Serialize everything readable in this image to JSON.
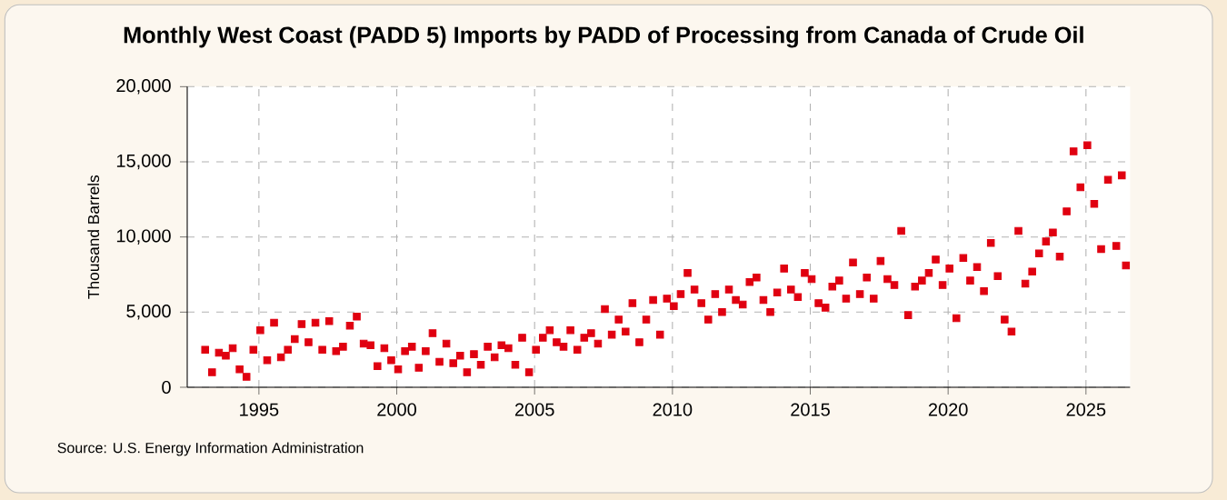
{
  "chart_data": {
    "type": "scatter",
    "title": "Monthly West Coast (PADD 5) Imports by PADD of Processing from Canada of Crude Oil",
    "ylabel": "Thousand Barrels",
    "annotations": [
      "Source: U.S. Energy Information Administration"
    ],
    "x": [
      1993.05,
      1993.3,
      1993.55,
      1993.8,
      1994.05,
      1994.3,
      1994.55,
      1994.8,
      1995.05,
      1995.3,
      1995.55,
      1995.8,
      1996.05,
      1996.3,
      1996.55,
      1996.8,
      1997.05,
      1997.3,
      1997.55,
      1997.8,
      1998.05,
      1998.3,
      1998.55,
      1998.8,
      1999.05,
      1999.3,
      1999.55,
      1999.8,
      2000.05,
      2000.3,
      2000.55,
      2000.8,
      2001.05,
      2001.3,
      2001.55,
      2001.8,
      2002.05,
      2002.3,
      2002.55,
      2002.8,
      2003.05,
      2003.3,
      2003.55,
      2003.8,
      2004.05,
      2004.3,
      2004.55,
      2004.8,
      2005.05,
      2005.3,
      2005.55,
      2005.8,
      2006.05,
      2006.3,
      2006.55,
      2006.8,
      2007.05,
      2007.3,
      2007.55,
      2007.8,
      2008.05,
      2008.3,
      2008.55,
      2008.8,
      2009.05,
      2009.3,
      2009.55,
      2009.8,
      2010.05,
      2010.3,
      2010.55,
      2010.8,
      2011.05,
      2011.3,
      2011.55,
      2011.8,
      2012.05,
      2012.3,
      2012.55,
      2012.8,
      2013.05,
      2013.3,
      2013.55,
      2013.8,
      2014.05,
      2014.3,
      2014.55,
      2014.8,
      2015.05,
      2015.3,
      2015.55,
      2015.8,
      2016.05,
      2016.3,
      2016.55,
      2016.8,
      2017.05,
      2017.3,
      2017.55,
      2017.8,
      2018.05,
      2018.3,
      2018.55,
      2018.8,
      2019.05,
      2019.3,
      2019.55,
      2019.8,
      2020.05,
      2020.3,
      2020.55,
      2020.8,
      2021.05,
      2021.3,
      2021.55,
      2021.8,
      2022.05,
      2022.3,
      2022.55,
      2022.8,
      2023.05,
      2023.3,
      2023.55,
      2023.8,
      2024.05,
      2024.3,
      2024.55,
      2024.8,
      2025.05,
      2025.3,
      2025.55,
      2025.8,
      2026.1,
      2026.3,
      2026.45
    ],
    "values": [
      2500,
      1000,
      2300,
      2100,
      2600,
      1200,
      700,
      2500,
      3800,
      1800,
      4300,
      2000,
      2500,
      3200,
      4200,
      3000,
      4300,
      2500,
      4400,
      2400,
      2700,
      4100,
      4700,
      2900,
      2800,
      1400,
      2600,
      1800,
      1200,
      2400,
      2700,
      1300,
      2400,
      3600,
      1700,
      2900,
      1600,
      2100,
      1000,
      2200,
      1500,
      2700,
      2000,
      2800,
      2600,
      1500,
      3300,
      1000,
      2500,
      3300,
      3800,
      3000,
      2700,
      3800,
      2500,
      3300,
      3600,
      2900,
      5200,
      3500,
      4500,
      3700,
      5600,
      3000,
      4500,
      5800,
      3500,
      5900,
      5400,
      6200,
      7600,
      6500,
      5600,
      4500,
      6200,
      5000,
      6500,
      5800,
      5500,
      7000,
      7300,
      5800,
      5000,
      6300,
      7900,
      6500,
      6000,
      7600,
      7200,
      5600,
      5300,
      6700,
      7100,
      5900,
      8300,
      6200,
      7300,
      5900,
      8400,
      7200,
      6800,
      10400,
      4800,
      6700,
      7100,
      7600,
      8500,
      6800,
      7900,
      4600,
      8600,
      7100,
      8000,
      6400,
      9600,
      7400,
      4500,
      3700,
      10400,
      6900,
      7700,
      8900,
      9700,
      10300,
      8700,
      11700,
      15700,
      13300,
      16100,
      12200,
      9200,
      13800,
      9400,
      14100,
      8100
    ],
    "color": "#e00010",
    "marker": "square",
    "grid": true,
    "xlim": [
      1992.4,
      2026.6
    ],
    "xticks": [
      1995,
      2000,
      2005,
      2010,
      2015,
      2020,
      2025
    ],
    "ylim": [
      0,
      20000
    ],
    "yticks": [
      0,
      {
        "value": 5000,
        "label": "5,000"
      },
      {
        "value": 10000,
        "label": "10,000"
      },
      {
        "value": 15000,
        "label": "15,000"
      },
      {
        "value": 20000,
        "label": "20,000"
      }
    ]
  }
}
